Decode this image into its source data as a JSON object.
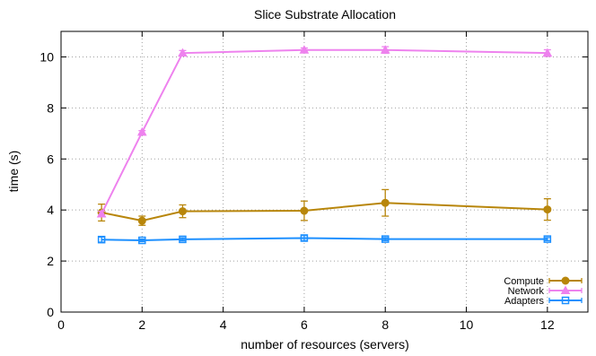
{
  "chart_data": {
    "type": "line",
    "title": "Slice Substrate Allocation",
    "xlabel": "number of resources (servers)",
    "ylabel": "time (s)",
    "xlim": [
      0,
      13
    ],
    "ylim": [
      0,
      11
    ],
    "xticks": [
      0,
      2,
      4,
      6,
      8,
      10,
      12
    ],
    "yticks": [
      0,
      2,
      4,
      6,
      8,
      10
    ],
    "grid": true,
    "legend_position": "bottom-right",
    "x": [
      1,
      2,
      3,
      6,
      8,
      12
    ],
    "series": [
      {
        "name": "Compute",
        "color": "#b8860b",
        "marker": "circle",
        "values": [
          3.9,
          3.58,
          3.95,
          3.97,
          4.28,
          4.02
        ],
        "errors": [
          0.33,
          0.18,
          0.25,
          0.38,
          0.52,
          0.42
        ]
      },
      {
        "name": "Network",
        "color": "#ee82ee",
        "marker": "triangle",
        "values": [
          3.85,
          7.05,
          10.15,
          10.27,
          10.27,
          10.15
        ],
        "errors": [
          0.1,
          0.06,
          0.1,
          0.08,
          0.13,
          0.13
        ]
      },
      {
        "name": "Adapters",
        "color": "#1e90ff",
        "marker": "square",
        "values": [
          2.84,
          2.81,
          2.85,
          2.9,
          2.86,
          2.86
        ],
        "errors": [
          0.1,
          0.05,
          0.06,
          0.1,
          0.06,
          0.06
        ]
      }
    ]
  }
}
